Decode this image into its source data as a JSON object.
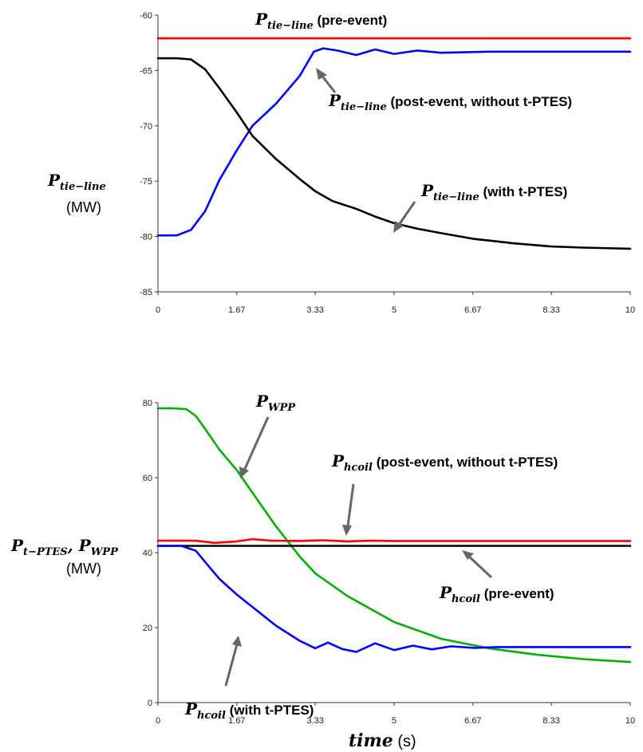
{
  "chart_data": [
    {
      "type": "line",
      "ylabel": {
        "main": "P",
        "sub": "tie−line",
        "unit": "(MW)"
      },
      "xlim": [
        0,
        10
      ],
      "ylim": [
        -85,
        -60
      ],
      "xticks": [
        "0",
        "1.67",
        "3.33",
        "5",
        "6.67",
        "8.33",
        "10"
      ],
      "yticks": [
        "-60",
        "-65",
        "-70",
        "-75",
        "-80",
        "-85"
      ],
      "grid": false,
      "series": [
        {
          "name": "P tie−line (pre-event)",
          "color": "#ff0000",
          "x": [
            0,
            10
          ],
          "y": [
            -62.1,
            -62.1
          ]
        },
        {
          "name": "P tie−line (post-event, without t-PTES)",
          "color": "#0000ff",
          "x": [
            0,
            0.4,
            0.7,
            1.0,
            1.3,
            1.67,
            2.0,
            2.5,
            3.0,
            3.3,
            3.5,
            3.8,
            4.2,
            4.6,
            5.0,
            5.5,
            6.0,
            7.0,
            8.0,
            9.0,
            10.0
          ],
          "y": [
            -79.9,
            -79.9,
            -79.4,
            -77.7,
            -74.9,
            -72.2,
            -70.0,
            -68.0,
            -65.5,
            -63.3,
            -63.0,
            -63.2,
            -63.6,
            -63.1,
            -63.5,
            -63.2,
            -63.4,
            -63.3,
            -63.3,
            -63.3,
            -63.3
          ]
        },
        {
          "name": "P tie−line (with t-PTES)",
          "color": "#000000",
          "x": [
            0,
            0.4,
            0.7,
            1.0,
            1.3,
            1.67,
            2.0,
            2.5,
            3.0,
            3.33,
            3.7,
            4.2,
            4.6,
            5.0,
            5.5,
            6.0,
            6.67,
            7.5,
            8.33,
            9.0,
            10.0
          ],
          "y": [
            -63.9,
            -63.9,
            -64.0,
            -64.9,
            -66.6,
            -68.8,
            -70.9,
            -73.0,
            -74.8,
            -75.9,
            -76.8,
            -77.5,
            -78.2,
            -78.8,
            -79.3,
            -79.7,
            -80.2,
            -80.6,
            -80.9,
            -81.0,
            -81.1
          ]
        }
      ],
      "annotations": [
        {
          "main": "P",
          "sub": "tie−line",
          "text": " (pre-event)"
        },
        {
          "main": "P",
          "sub": "tie−line",
          "text": " (post-event, without t-PTES)"
        },
        {
          "main": "P",
          "sub": "tie−line",
          "text": " (with t-PTES)"
        }
      ]
    },
    {
      "type": "line",
      "ylabel": {
        "main1": "P",
        "sub1": "t−PTES",
        "sep": ", ",
        "main2": "P",
        "sub2": "WPP",
        "unit": "(MW)"
      },
      "xlabel": {
        "main": "time",
        "unit": " (s)"
      },
      "xlim": [
        0,
        10
      ],
      "ylim": [
        0,
        80
      ],
      "xticks": [
        "0",
        "1.67",
        "3.33",
        "5",
        "6.67",
        "8.33",
        "10"
      ],
      "yticks": [
        "0",
        "20",
        "40",
        "60",
        "80"
      ],
      "grid": false,
      "series": [
        {
          "name": "P WPP",
          "color": "#00b000",
          "x": [
            0,
            0.3,
            0.6,
            0.8,
            1.0,
            1.3,
            1.67,
            2.0,
            2.5,
            3.0,
            3.33,
            4.0,
            5.0,
            6.0,
            7.0,
            8.0,
            9.0,
            10.0
          ],
          "y": [
            78.5,
            78.5,
            78.3,
            76.5,
            73.0,
            67.5,
            62.0,
            56.0,
            47.0,
            39.0,
            34.5,
            28.5,
            21.5,
            17.0,
            14.5,
            12.8,
            11.6,
            10.8
          ]
        },
        {
          "name": "P hcoil (post-event, without t-PTES)",
          "color": "#ff0000",
          "x": [
            0,
            0.8,
            1.2,
            1.67,
            2.0,
            2.4,
            3.0,
            3.5,
            4.0,
            4.5,
            5.0,
            6.0,
            7.0,
            8.0,
            9.0,
            10.0
          ],
          "y": [
            43.2,
            43.2,
            42.6,
            43.0,
            43.6,
            43.2,
            43.1,
            43.3,
            43.0,
            43.2,
            43.1,
            43.1,
            43.1,
            43.1,
            43.1,
            43.1
          ]
        },
        {
          "name": "P hcoil (pre-event)",
          "color": "#000000",
          "x": [
            0,
            10
          ],
          "y": [
            41.8,
            41.8
          ]
        },
        {
          "name": "P hcoil (with t-PTES)",
          "color": "#0000ff",
          "x": [
            0,
            0.5,
            0.8,
            1.0,
            1.3,
            1.67,
            2.0,
            2.5,
            3.0,
            3.33,
            3.6,
            3.9,
            4.2,
            4.6,
            5.0,
            5.4,
            5.8,
            6.2,
            6.7,
            7.2,
            8.0,
            9.0,
            10.0
          ],
          "y": [
            41.8,
            41.8,
            40.5,
            37.5,
            33.0,
            28.8,
            25.5,
            20.5,
            16.5,
            14.5,
            16.0,
            14.3,
            13.5,
            15.8,
            14.0,
            15.2,
            14.2,
            15.0,
            14.6,
            14.8,
            14.8,
            14.8,
            14.8
          ]
        }
      ],
      "annotations": [
        {
          "main": "P",
          "sub": "WPP",
          "text": ""
        },
        {
          "main": "P",
          "sub": "hcoil",
          "text": " (post-event, without t-PTES)"
        },
        {
          "main": "P",
          "sub": "hcoil",
          "text": " (pre-event)"
        },
        {
          "main": "P",
          "sub": "hcoil",
          "text": " (with t-PTES)"
        }
      ]
    }
  ]
}
